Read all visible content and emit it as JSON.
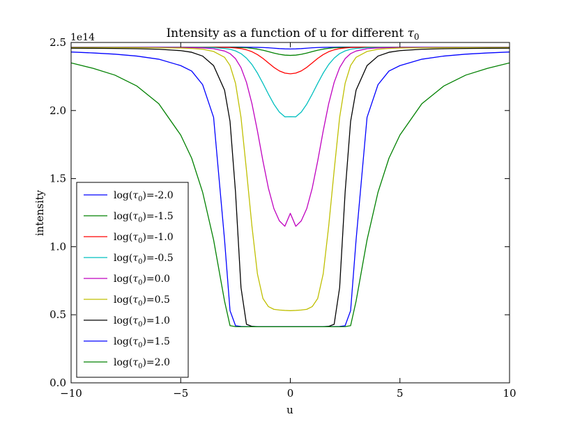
{
  "chart_data": {
    "type": "line",
    "title_main": "Intensity as a function of u for different ",
    "title_symbol": "τ",
    "title_subscript": "0",
    "xlabel": "u",
    "ylabel": "intensity",
    "y_offset_label": "1e14",
    "xlim": [
      -10,
      10
    ],
    "ylim": [
      0,
      2.5
    ],
    "x_ticks": [
      {
        "value": -10,
        "label": "−10"
      },
      {
        "value": -5,
        "label": "−5"
      },
      {
        "value": 0,
        "label": "0"
      },
      {
        "value": 5,
        "label": "5"
      },
      {
        "value": 10,
        "label": "10"
      }
    ],
    "y_ticks": [
      {
        "value": 0.0,
        "label": "0.0"
      },
      {
        "value": 0.5,
        "label": "0.5"
      },
      {
        "value": 1.0,
        "label": "1.0"
      },
      {
        "value": 1.5,
        "label": "1.5"
      },
      {
        "value": 2.0,
        "label": "2.0"
      },
      {
        "value": 2.5,
        "label": "2.5"
      }
    ],
    "grid": false,
    "legend_position": "lower-left",
    "x": [
      -10,
      -9,
      -8,
      -7,
      -6,
      -5,
      -4.5,
      -4,
      -3.5,
      -3,
      -2.75,
      -2.5,
      -2.25,
      -2,
      -1.75,
      -1.5,
      -1.25,
      -1,
      -0.75,
      -0.5,
      -0.25,
      0,
      0.25,
      0.5,
      0.75,
      1,
      1.25,
      1.5,
      1.75,
      2,
      2.25,
      2.5,
      2.75,
      3,
      3.5,
      4,
      4.5,
      5,
      6,
      7,
      8,
      9,
      10
    ],
    "series": [
      {
        "name": "log(τ0)=-2.0",
        "legend_prefix": "log(",
        "legend_symbol": "τ",
        "legend_sub": "0",
        "legend_suffix": ")=-2.0",
        "color": "#0000ff",
        "values": [
          2.466,
          2.466,
          2.466,
          2.466,
          2.466,
          2.466,
          2.466,
          2.466,
          2.466,
          2.466,
          2.466,
          2.466,
          2.466,
          2.465,
          2.465,
          2.464,
          2.463,
          2.461,
          2.458,
          2.455,
          2.453,
          2.452,
          2.453,
          2.455,
          2.458,
          2.461,
          2.463,
          2.464,
          2.465,
          2.465,
          2.466,
          2.466,
          2.466,
          2.466,
          2.466,
          2.466,
          2.466,
          2.466,
          2.466,
          2.466,
          2.466,
          2.466,
          2.466
        ]
      },
      {
        "name": "log(τ0)=-1.5",
        "legend_prefix": "log(",
        "legend_symbol": "τ",
        "legend_sub": "0",
        "legend_suffix": ")=-1.5",
        "color": "#008000",
        "values": [
          2.466,
          2.466,
          2.466,
          2.466,
          2.466,
          2.466,
          2.466,
          2.466,
          2.466,
          2.465,
          2.465,
          2.464,
          2.463,
          2.461,
          2.457,
          2.451,
          2.443,
          2.433,
          2.422,
          2.413,
          2.407,
          2.405,
          2.407,
          2.413,
          2.422,
          2.433,
          2.443,
          2.451,
          2.457,
          2.461,
          2.463,
          2.464,
          2.465,
          2.465,
          2.466,
          2.466,
          2.466,
          2.466,
          2.466,
          2.466,
          2.466,
          2.466,
          2.466
        ]
      },
      {
        "name": "log(τ0)=-1.0",
        "legend_prefix": "log(",
        "legend_symbol": "τ",
        "legend_sub": "0",
        "legend_suffix": ")=-1.0",
        "color": "#ff0000",
        "values": [
          2.466,
          2.466,
          2.466,
          2.466,
          2.466,
          2.466,
          2.466,
          2.466,
          2.465,
          2.464,
          2.463,
          2.46,
          2.455,
          2.446,
          2.432,
          2.411,
          2.383,
          2.35,
          2.317,
          2.291,
          2.275,
          2.27,
          2.275,
          2.291,
          2.317,
          2.35,
          2.383,
          2.411,
          2.432,
          2.446,
          2.455,
          2.46,
          2.463,
          2.464,
          2.465,
          2.466,
          2.466,
          2.466,
          2.466,
          2.466,
          2.466,
          2.466,
          2.466
        ]
      },
      {
        "name": "log(τ0)=-0.5",
        "legend_prefix": "log(",
        "legend_symbol": "τ",
        "legend_sub": "0",
        "legend_suffix": ")=-0.5",
        "color": "#00bfbf",
        "values": [
          2.466,
          2.466,
          2.466,
          2.466,
          2.466,
          2.465,
          2.465,
          2.464,
          2.462,
          2.456,
          2.45,
          2.438,
          2.418,
          2.385,
          2.338,
          2.275,
          2.2,
          2.121,
          2.047,
          1.989,
          1.954,
          1.955,
          1.954,
          1.989,
          2.047,
          2.121,
          2.2,
          2.275,
          2.338,
          2.385,
          2.418,
          2.438,
          2.45,
          2.456,
          2.462,
          2.464,
          2.465,
          2.465,
          2.466,
          2.466,
          2.466,
          2.466,
          2.466
        ]
      },
      {
        "name": "log(τ0)=0.0",
        "legend_prefix": "log(",
        "legend_symbol": "τ",
        "legend_sub": "0",
        "legend_suffix": ")=0.0",
        "color": "#bf00bf",
        "values": [
          2.465,
          2.465,
          2.465,
          2.465,
          2.465,
          2.463,
          2.462,
          2.46,
          2.454,
          2.437,
          2.418,
          2.381,
          2.315,
          2.207,
          2.05,
          1.85,
          1.63,
          1.43,
          1.28,
          1.19,
          1.15,
          1.245,
          1.15,
          1.19,
          1.28,
          1.43,
          1.63,
          1.85,
          2.05,
          2.207,
          2.315,
          2.381,
          2.418,
          2.437,
          2.454,
          2.46,
          2.462,
          2.463,
          2.465,
          2.465,
          2.465,
          2.465,
          2.465
        ]
      },
      {
        "name": "log(τ0)=0.5",
        "legend_prefix": "log(",
        "legend_symbol": "τ",
        "legend_sub": "0",
        "legend_suffix": ")=0.5",
        "color": "#bfbf00",
        "values": [
          2.463,
          2.463,
          2.463,
          2.462,
          2.461,
          2.459,
          2.456,
          2.45,
          2.434,
          2.391,
          2.331,
          2.2,
          1.95,
          1.56,
          1.15,
          0.8,
          0.62,
          0.56,
          0.54,
          0.535,
          0.532,
          0.53,
          0.532,
          0.535,
          0.54,
          0.56,
          0.62,
          0.8,
          1.15,
          1.56,
          1.95,
          2.2,
          2.331,
          2.391,
          2.434,
          2.45,
          2.456,
          2.459,
          2.461,
          2.462,
          2.463,
          2.463,
          2.463
        ]
      },
      {
        "name": "log(τ0)=1.0",
        "legend_prefix": "log(",
        "legend_symbol": "τ",
        "legend_sub": "0",
        "legend_suffix": ")=1.0",
        "color": "#000000",
        "values": [
          2.458,
          2.457,
          2.456,
          2.454,
          2.45,
          2.44,
          2.428,
          2.4,
          2.33,
          2.15,
          1.92,
          1.4,
          0.7,
          0.43,
          0.415,
          0.413,
          0.412,
          0.412,
          0.412,
          0.412,
          0.412,
          0.412,
          0.412,
          0.412,
          0.412,
          0.412,
          0.412,
          0.413,
          0.415,
          0.43,
          0.7,
          1.4,
          1.92,
          2.15,
          2.33,
          2.4,
          2.428,
          2.44,
          2.45,
          2.454,
          2.456,
          2.457,
          2.458
        ]
      },
      {
        "name": "log(τ0)=1.5",
        "legend_prefix": "log(",
        "legend_symbol": "τ",
        "legend_sub": "0",
        "legend_suffix": ")=1.5",
        "color": "#0000ff",
        "values": [
          2.43,
          2.423,
          2.414,
          2.4,
          2.377,
          2.33,
          2.29,
          2.19,
          1.95,
          1.05,
          0.53,
          0.42,
          0.414,
          0.413,
          0.412,
          0.412,
          0.412,
          0.412,
          0.412,
          0.412,
          0.412,
          0.412,
          0.412,
          0.412,
          0.412,
          0.412,
          0.412,
          0.412,
          0.412,
          0.413,
          0.414,
          0.42,
          0.53,
          1.05,
          1.95,
          2.19,
          2.29,
          2.33,
          2.377,
          2.4,
          2.414,
          2.423,
          2.43
        ]
      },
      {
        "name": "log(τ0)=2.0",
        "legend_prefix": "log(",
        "legend_symbol": "τ",
        "legend_sub": "0",
        "legend_suffix": ")=2.0",
        "color": "#008000",
        "values": [
          2.35,
          2.31,
          2.26,
          2.18,
          2.05,
          1.82,
          1.65,
          1.4,
          1.05,
          0.6,
          0.42,
          0.413,
          0.412,
          0.412,
          0.412,
          0.412,
          0.412,
          0.412,
          0.412,
          0.412,
          0.412,
          0.412,
          0.412,
          0.412,
          0.412,
          0.412,
          0.412,
          0.412,
          0.412,
          0.412,
          0.412,
          0.413,
          0.42,
          0.6,
          1.05,
          1.4,
          1.65,
          1.82,
          2.05,
          2.18,
          2.26,
          2.31,
          2.35
        ]
      }
    ]
  }
}
